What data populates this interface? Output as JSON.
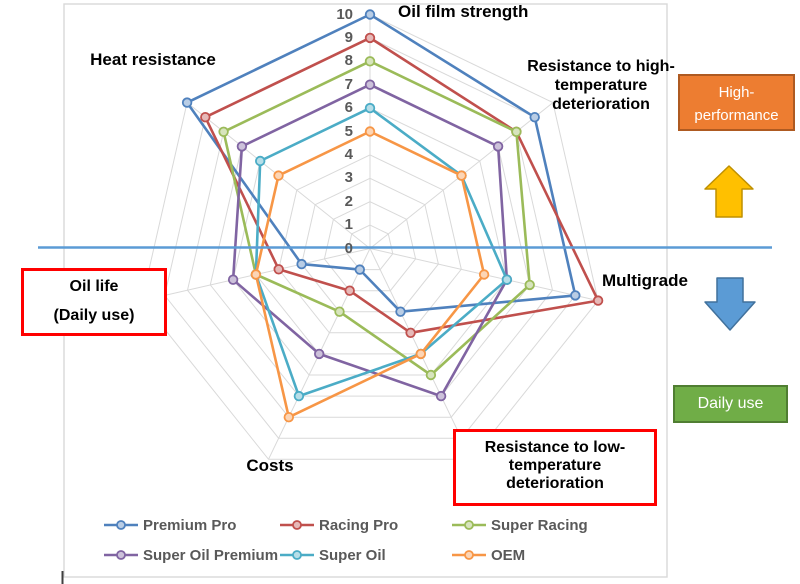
{
  "chart_data": {
    "type": "radar",
    "axes": [
      "Oil film strength",
      "Resistance to high-temperature deterioration",
      "Multigrade",
      "Resistance to low-temperature deterioration",
      "Costs",
      "Oil life (Daily use)",
      "Heat resistance"
    ],
    "ticks": [
      0,
      1,
      2,
      3,
      4,
      5,
      6,
      7,
      8,
      9,
      10
    ],
    "rmin": 0,
    "rmax": 10,
    "grid": true,
    "legend_position": "bottom",
    "series": [
      {
        "name": "Premium Pro",
        "color": "#4F81BD",
        "values": [
          10,
          9,
          9,
          3,
          1,
          3,
          10
        ]
      },
      {
        "name": "Racing Pro",
        "color": "#C0504D",
        "values": [
          9,
          8,
          10,
          4,
          2,
          4,
          9
        ]
      },
      {
        "name": "Super Racing",
        "color": "#9BBB59",
        "values": [
          8,
          8,
          7,
          6,
          3,
          5,
          8
        ]
      },
      {
        "name": "Super Oil Premium",
        "color": "#8064A2",
        "values": [
          7,
          7,
          6,
          7,
          5,
          6,
          7
        ]
      },
      {
        "name": "Super Oil",
        "color": "#4BACC6",
        "values": [
          6,
          5,
          6,
          5,
          7,
          5,
          6
        ]
      },
      {
        "name": "OEM",
        "color": "#F79646",
        "values": [
          5,
          5,
          5,
          5,
          8,
          5,
          5
        ]
      }
    ]
  },
  "labels": {
    "oil_film": "Oil film strength",
    "high_temp": "Resistance to high-temperature deterioration",
    "multigrade": "Multigrade",
    "low_temp": "Resistance to low-temperature deterioration",
    "costs": "Costs",
    "oil_life_line1": "Oil life",
    "oil_life_line2": "(Daily use)",
    "heat": "Heat resistance"
  },
  "annotations": {
    "high_performance": {
      "line1": "High-",
      "line2": "performance",
      "fill": "#ED7D31"
    },
    "daily_use": {
      "text": "Daily use",
      "fill": "#70AD47"
    },
    "up_arrow_fill": "#FFC000",
    "down_arrow_fill": "#5B9BD5",
    "divider_color": "#5B9BD5",
    "grid_color": "#D9D9D9",
    "annotation_box_border": "#FF0000"
  }
}
